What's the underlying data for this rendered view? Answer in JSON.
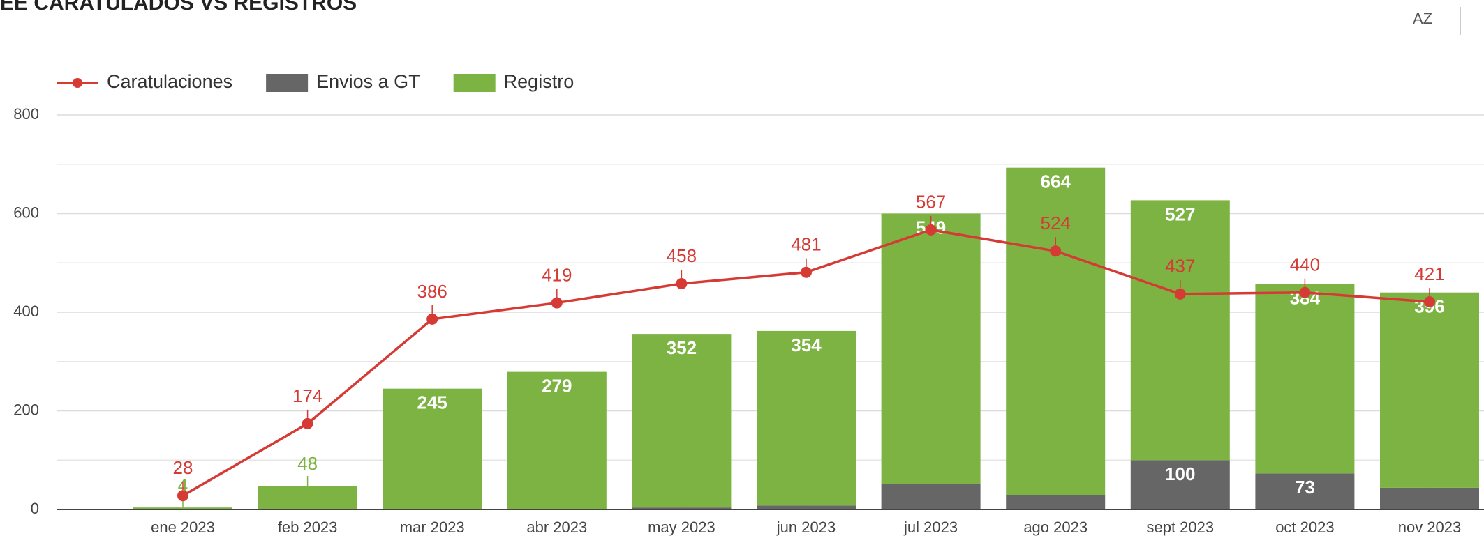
{
  "chart_data": {
    "type": "bar-line",
    "title": "EE CARATULADOS VS REGISTROS",
    "icon_text": "AZ",
    "categories": [
      "ene 2023",
      "feb 2023",
      "mar 2023",
      "abr 2023",
      "may 2023",
      "jun 2023",
      "jul 2023",
      "ago 2023",
      "sept 2023",
      "oct 2023",
      "nov 2023"
    ],
    "series": [
      {
        "name": "Caratulaciones",
        "type": "line",
        "color": "#d63a34",
        "values": [
          28,
          174,
          386,
          419,
          458,
          481,
          567,
          524,
          437,
          440,
          421
        ]
      },
      {
        "name": "Envios a GT",
        "type": "bar",
        "color": "#666666",
        "values": [
          null,
          null,
          null,
          null,
          4,
          8,
          51,
          29,
          100,
          73,
          44
        ]
      },
      {
        "name": "Registro",
        "type": "bar",
        "color": "#7cb342",
        "values": [
          4,
          48,
          245,
          279,
          352,
          354,
          549,
          664,
          527,
          384,
          396
        ]
      }
    ],
    "stacked": true,
    "ylim": [
      0,
      800
    ],
    "yticks": [
      0,
      200,
      400,
      600,
      800
    ],
    "minor_yticks": [
      100,
      300,
      500,
      700
    ],
    "grid": true,
    "legend": "top-left"
  }
}
